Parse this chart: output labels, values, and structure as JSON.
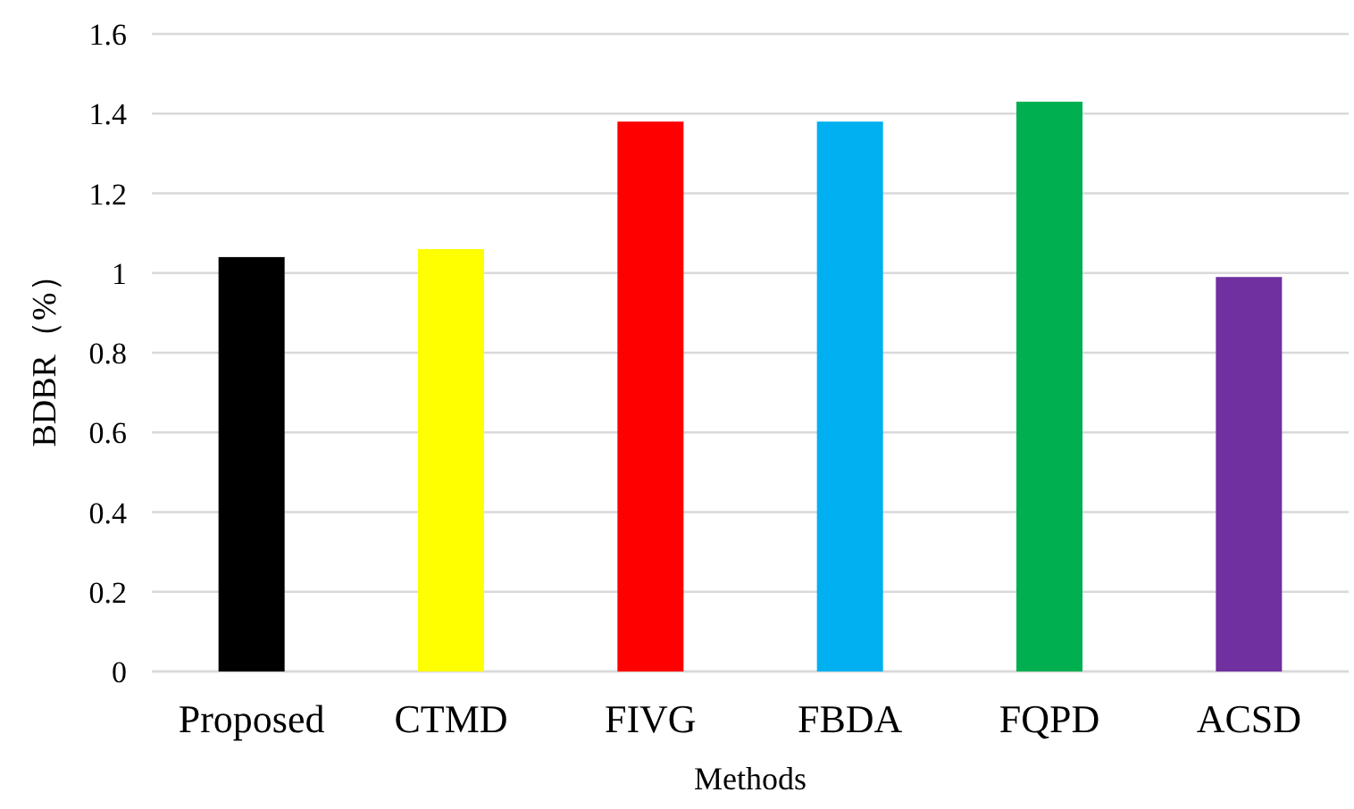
{
  "chart_data": {
    "type": "bar",
    "xlabel": "Methods",
    "ylabel": "BDBR（%）",
    "categories": [
      "Proposed",
      "CTMD",
      "FIVG",
      "FBDA",
      "FQPD",
      "ACSD"
    ],
    "values": [
      1.04,
      1.06,
      1.38,
      1.38,
      1.43,
      0.99
    ],
    "colors": [
      "#000000",
      "#ffff00",
      "#ff0000",
      "#00b0f0",
      "#00b050",
      "#7030a0"
    ],
    "ylim": [
      0,
      1.6
    ],
    "yticks": [
      0,
      0.2,
      0.4,
      0.6,
      0.8,
      1,
      1.2,
      1.4,
      1.6
    ],
    "grid": "y"
  }
}
